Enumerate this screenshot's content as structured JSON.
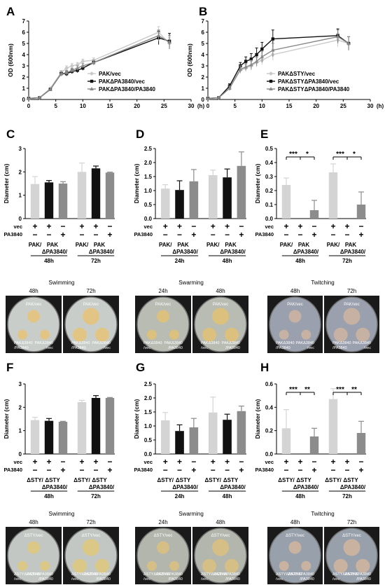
{
  "panels": {
    "A": {
      "letter": "A",
      "xunit": "(h)",
      "ylabel": "OD (600nm)"
    },
    "B": {
      "letter": "B",
      "xunit": "(h)",
      "ylabel": "OD (600nm)"
    },
    "C": {
      "letter": "C"
    },
    "D": {
      "letter": "D"
    },
    "E": {
      "letter": "E"
    },
    "F": {
      "letter": "F"
    },
    "G": {
      "letter": "G"
    },
    "H": {
      "letter": "H"
    }
  },
  "row_labels": {
    "vec": "vec",
    "pa": "PA3840"
  },
  "photos": {
    "swim1": {
      "title": "Swimming",
      "times": [
        "48h",
        "72h"
      ],
      "top": "PAK/vec",
      "bl": "PAKΔ3840\n/PA3840",
      "br": "PAKΔ3840\n/vec",
      "bg": "#c9cdca",
      "colony": "#e2c584"
    },
    "swarm1": {
      "title": "Swarming",
      "times": [
        "24h",
        "48h"
      ],
      "top": "PAK/vec",
      "bl": "PAKΔ3840\n/vec",
      "br": "PAKΔ3840\n/PA3840",
      "bg": "#b9bcb3",
      "colony": "#dcc07e"
    },
    "twitch1": {
      "title": "Twitching",
      "times": [
        "48h",
        "72h"
      ],
      "top": "PAK/vec",
      "bl": "PAKΔ3840\n/PA3840",
      "br": "PAKΔ3840\n/vec",
      "bg": "#9aa0ad",
      "colony": "#c7b1a2"
    },
    "swim2": {
      "title": "Swimming",
      "times": [
        "48h",
        "72h"
      ],
      "top": "ΔSTY/vec",
      "bl": "ΔSTYΔPA3840\n/vec",
      "br": "ΔSTYΔPA3840\n/PA3840",
      "bg": "#c2c7c3",
      "colony": "#dcc886"
    },
    "swarm2": {
      "title": "Swarming",
      "times": [
        "24h",
        "48h"
      ],
      "top": "ΔSTY/vec",
      "bl": "ΔSTYΔPA3840\n/vec",
      "br": "ΔSTYΔPA3840\n/PA3840",
      "bg": "#b3b6ad",
      "colony": "#d5bf86"
    },
    "twitch2": {
      "title": "Twitching",
      "times": [
        "48h",
        "72h"
      ],
      "top": "ΔSTY/vec",
      "bl": "ΔSTYΔPA3840\n/vec",
      "br": "ΔSTYΔPA3840\n/PA3840",
      "bg": "#98a0ab",
      "colony": "#c9b2a0"
    }
  },
  "chart_data": [
    {
      "id": "A",
      "type": "line",
      "xlabel": "(h)",
      "ylabel": "OD (600nm)",
      "xlim": [
        0,
        30
      ],
      "ylim": [
        0,
        7
      ],
      "xticks": [
        0,
        5,
        10,
        15,
        20,
        25,
        30
      ],
      "yticks": [
        0,
        1,
        2,
        3,
        4,
        5,
        6,
        7
      ],
      "legend_position": "bottom-right",
      "series": [
        {
          "name": "PAK/vec",
          "color": "#c8c8c8",
          "marker": "diamond",
          "x": [
            0,
            2,
            4,
            6,
            7,
            8,
            9,
            10,
            12,
            24,
            26
          ],
          "y": [
            0.1,
            0.15,
            1.0,
            2.4,
            2.8,
            3.0,
            3.1,
            3.4,
            3.5,
            6.0,
            5.0
          ],
          "err": [
            0,
            0,
            0,
            0.2,
            0.2,
            0.2,
            0.2,
            0.2,
            0.2,
            0.5,
            0.5
          ]
        },
        {
          "name": "PAKΔPA3840/vec",
          "color": "#111111",
          "marker": "square",
          "x": [
            0,
            2,
            4,
            6,
            7,
            8,
            9,
            10,
            12,
            24,
            26
          ],
          "y": [
            0.1,
            0.15,
            0.9,
            2.3,
            2.3,
            2.5,
            2.6,
            2.8,
            3.3,
            5.5,
            5.2
          ],
          "err": [
            0,
            0,
            0,
            0.2,
            0.2,
            0.2,
            0.2,
            0.2,
            0.2,
            0.6,
            0.7
          ]
        },
        {
          "name": "PAKΔPA3840/PA3840",
          "color": "#888888",
          "marker": "triangle",
          "x": [
            0,
            2,
            4,
            6,
            7,
            8,
            9,
            10,
            12,
            24,
            26
          ],
          "y": [
            0.1,
            0.15,
            0.9,
            2.3,
            2.4,
            2.6,
            2.8,
            3.0,
            3.3,
            5.7,
            5.1
          ],
          "err": [
            0,
            0,
            0,
            0.2,
            0.2,
            0.2,
            0.2,
            0.2,
            0.2,
            0.5,
            0.6
          ]
        }
      ]
    },
    {
      "id": "B",
      "type": "line",
      "xlabel": "(h)",
      "ylabel": "OD (600nm)",
      "xlim": [
        0,
        30
      ],
      "ylim": [
        0,
        7
      ],
      "xticks": [
        0,
        5,
        10,
        15,
        20,
        25,
        30
      ],
      "yticks": [
        0,
        1,
        2,
        3,
        4,
        5,
        6,
        7
      ],
      "legend_position": "bottom-right",
      "series": [
        {
          "name": "PAKΔSTY/vec",
          "color": "#c8c8c8",
          "marker": "diamond",
          "x": [
            0,
            2,
            4,
            6,
            7,
            8,
            9,
            10,
            12,
            24,
            26
          ],
          "y": [
            0.1,
            0.15,
            1.0,
            2.6,
            2.8,
            3.0,
            3.3,
            3.5,
            4.0,
            5.3,
            5.0
          ],
          "err": [
            0,
            0,
            0.2,
            0.3,
            0.3,
            0.4,
            0.4,
            0.4,
            0.5,
            0.6,
            0.6
          ]
        },
        {
          "name": "PAKΔSTYΔPA3840/vec",
          "color": "#111111",
          "marker": "square",
          "x": [
            0,
            2,
            4,
            6,
            7,
            8,
            9,
            10,
            12,
            24,
            26
          ],
          "y": [
            0.1,
            0.15,
            1.2,
            3.0,
            3.4,
            3.6,
            4.0,
            4.5,
            5.4,
            5.7,
            5.0
          ],
          "err": [
            0,
            0,
            0.2,
            0.3,
            0.4,
            0.5,
            0.6,
            0.6,
            0.8,
            0.6,
            0.6
          ]
        },
        {
          "name": "PAKΔSTYΔPA3840/PA3840",
          "color": "#888888",
          "marker": "triangle",
          "x": [
            0,
            2,
            4,
            6,
            7,
            8,
            9,
            10,
            12,
            24,
            26
          ],
          "y": [
            0.1,
            0.15,
            1.0,
            2.7,
            2.9,
            3.1,
            3.4,
            3.8,
            4.4,
            5.6,
            5.0
          ],
          "err": [
            0,
            0,
            0.2,
            0.3,
            0.3,
            0.4,
            0.4,
            0.5,
            0.6,
            0.6,
            0.6
          ]
        }
      ]
    },
    {
      "id": "C",
      "type": "bar",
      "ylabel": "Diameter (cm)",
      "ylim": [
        0,
        3
      ],
      "yticks": [
        0,
        1,
        2,
        3
      ],
      "values": [
        1.48,
        1.55,
        1.5,
        2.0,
        2.15,
        1.97
      ],
      "err": [
        0.32,
        0.08,
        0.08,
        0.38,
        0.1,
        0.02
      ],
      "colors": [
        "#d4d4d4",
        "#111111",
        "#8c8c8c",
        "#d4d4d4",
        "#111111",
        "#8c8c8c"
      ],
      "vec": [
        "+",
        "+",
        "−",
        "+",
        "+",
        "−"
      ],
      "pa": [
        "−",
        "−",
        "+",
        "−",
        "−",
        "+"
      ],
      "strain_labels": [
        "PAK/",
        "PAK",
        "PAK/",
        "PAK"
      ],
      "mutant_labels": [
        "ΔPA3840/",
        "ΔPA3840/"
      ],
      "groups": [
        "48h",
        "72h"
      ]
    },
    {
      "id": "D",
      "type": "bar",
      "ylabel": "Diameter (cm)",
      "ylim": [
        0,
        2.5
      ],
      "yticks": [
        0.0,
        0.5,
        1.0,
        1.5,
        2.0,
        2.5
      ],
      "values": [
        1.07,
        1.02,
        1.33,
        1.55,
        1.47,
        1.88
      ],
      "err": [
        0.14,
        0.33,
        0.42,
        0.18,
        0.3,
        0.5
      ],
      "colors": [
        "#d4d4d4",
        "#111111",
        "#8c8c8c",
        "#d4d4d4",
        "#111111",
        "#8c8c8c"
      ],
      "vec": [
        "+",
        "+",
        "−",
        "+",
        "+",
        "−"
      ],
      "pa": [
        "−",
        "−",
        "+",
        "−",
        "−",
        "+"
      ],
      "strain_labels": [
        "PAK/",
        "PAK",
        "PAK/",
        "PAK"
      ],
      "mutant_labels": [
        "ΔPA3840/",
        "ΔPA3840/"
      ],
      "groups": [
        "24h",
        "48h"
      ]
    },
    {
      "id": "E",
      "type": "bar",
      "ylabel": "Diameter (cm)",
      "ylim": [
        0,
        0.5
      ],
      "yticks": [
        0.0,
        0.1,
        0.2,
        0.3,
        0.4,
        0.5
      ],
      "values": [
        0.24,
        0,
        0.06,
        0.33,
        0,
        0.1
      ],
      "err": [
        0.05,
        0,
        0.07,
        0.06,
        0,
        0.09
      ],
      "colors": [
        "#d4d4d4",
        "#111111",
        "#8c8c8c",
        "#d4d4d4",
        "#111111",
        "#8c8c8c"
      ],
      "vec": [
        "+",
        "+",
        "−",
        "+",
        "+",
        "−"
      ],
      "pa": [
        "−",
        "−",
        "+",
        "−",
        "−",
        "+"
      ],
      "strain_labels": [
        "PAK/",
        "PAK",
        "PAK/",
        "PAK"
      ],
      "mutant_labels": [
        "ΔPA3840/",
        "ΔPA3840/"
      ],
      "groups": [
        "48h",
        "72h"
      ],
      "significance": [
        {
          "from": 0,
          "to": 1,
          "label": "***"
        },
        {
          "from": 1,
          "to": 2,
          "label": "*"
        },
        {
          "from": 3,
          "to": 4,
          "label": "***"
        },
        {
          "from": 4,
          "to": 5,
          "label": "*"
        }
      ]
    },
    {
      "id": "F",
      "type": "bar",
      "ylabel": "Diameter (cm)",
      "ylim": [
        0,
        3
      ],
      "yticks": [
        0,
        1,
        2,
        3
      ],
      "values": [
        1.45,
        1.42,
        1.38,
        2.22,
        2.4,
        2.4
      ],
      "err": [
        0.12,
        0.1,
        0.02,
        0.08,
        0.1,
        0.02
      ],
      "colors": [
        "#d4d4d4",
        "#111111",
        "#8c8c8c",
        "#d4d4d4",
        "#111111",
        "#8c8c8c"
      ],
      "vec": [
        "+",
        "+",
        "−",
        "+",
        "+",
        "−"
      ],
      "pa": [
        "−",
        "−",
        "+",
        "−",
        "−",
        "+"
      ],
      "strain_labels": [
        "ΔSTY/",
        "ΔSTY",
        "ΔSTY/",
        "ΔSTY"
      ],
      "mutant_labels": [
        "ΔPA3840/",
        "ΔPA3840/"
      ],
      "groups": [
        "48h",
        "72h"
      ]
    },
    {
      "id": "G",
      "type": "bar",
      "ylabel": "Diameter (cm)",
      "ylim": [
        0,
        2.5
      ],
      "yticks": [
        0.0,
        0.5,
        1.0,
        1.5,
        2.0,
        2.5
      ],
      "values": [
        1.2,
        0.82,
        0.95,
        1.48,
        1.22,
        1.53
      ],
      "err": [
        0.28,
        0.22,
        0.32,
        0.55,
        0.2,
        0.18
      ],
      "colors": [
        "#d4d4d4",
        "#111111",
        "#8c8c8c",
        "#d4d4d4",
        "#111111",
        "#8c8c8c"
      ],
      "vec": [
        "+",
        "+",
        "−",
        "+",
        "+",
        "−"
      ],
      "pa": [
        "−",
        "−",
        "+",
        "−",
        "−",
        "+"
      ],
      "strain_labels": [
        "ΔSTY/",
        "ΔSTY",
        "ΔSTY/",
        "ΔSTY"
      ],
      "mutant_labels": [
        "ΔPA3840/",
        "ΔPA3840/"
      ],
      "groups": [
        "24h",
        "48h"
      ]
    },
    {
      "id": "H",
      "type": "bar",
      "ylabel": "Diameter (cm)",
      "ylim": [
        0,
        0.6
      ],
      "yticks": [
        0.0,
        0.2,
        0.4,
        0.6
      ],
      "values": [
        0.22,
        0,
        0.15,
        0.47,
        0,
        0.18
      ],
      "err": [
        0.16,
        0,
        0.07,
        0.09,
        0,
        0.1
      ],
      "colors": [
        "#d4d4d4",
        "#111111",
        "#8c8c8c",
        "#d4d4d4",
        "#111111",
        "#8c8c8c"
      ],
      "vec": [
        "+",
        "+",
        "−",
        "+",
        "+",
        "−"
      ],
      "pa": [
        "−",
        "−",
        "+",
        "−",
        "−",
        "+"
      ],
      "strain_labels": [
        "ΔSTY/",
        "ΔSTY",
        "ΔSTY/",
        "ΔSTY"
      ],
      "mutant_labels": [
        "ΔPA3840/",
        "ΔPA3840/"
      ],
      "groups": [
        "48h",
        "72h"
      ],
      "significance": [
        {
          "from": 0,
          "to": 1,
          "label": "***"
        },
        {
          "from": 1,
          "to": 2,
          "label": "**"
        },
        {
          "from": 3,
          "to": 4,
          "label": "***"
        },
        {
          "from": 4,
          "to": 5,
          "label": "**"
        }
      ]
    }
  ]
}
